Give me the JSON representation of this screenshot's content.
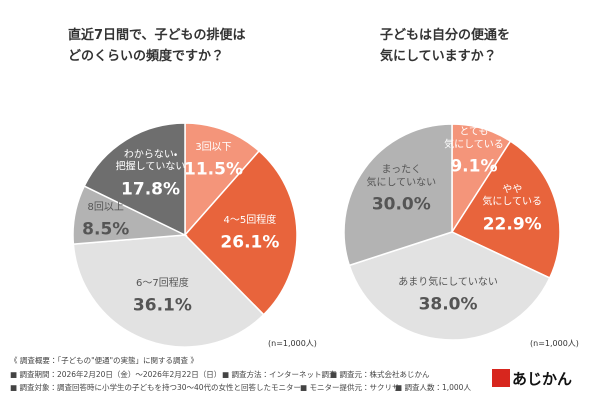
{
  "chart_data": [
    {
      "type": "pie",
      "title": "直近7日間で、子どもの排便は\nどのくらいの頻度ですか？",
      "categories": [
        "3回以下",
        "4〜5回程度",
        "6〜7回程度",
        "8回以上",
        "わからない・\n把握していない"
      ],
      "values": [
        11.5,
        26.1,
        36.1,
        8.5,
        17.8
      ],
      "value_labels": [
        "11.5%",
        "26.1%",
        "36.1%",
        "8.5%",
        "17.8%"
      ],
      "colors": [
        "#f4957a",
        "#e8643c",
        "#e2e2e2",
        "#b3b3b3",
        "#6e6e6e"
      ],
      "note": "(n=1,000人)"
    },
    {
      "type": "pie",
      "title": "子どもは自分の便通を\n気にしていますか？",
      "categories": [
        "とても\n気にしている",
        "やや\n気にしている",
        "あまり気にしていない",
        "まったく\n気にしていない"
      ],
      "values": [
        9.1,
        22.9,
        38.0,
        30.0
      ],
      "value_labels": [
        "9.1%",
        "22.9%",
        "38.0%",
        "30.0%"
      ],
      "colors": [
        "#f4957a",
        "#e8643c",
        "#e2e2e2",
        "#b3b3b3"
      ],
      "note": "(n=1,000人)"
    }
  ],
  "footer": {
    "heading": "《 調査概要：「子どもの\"便通\"の実態」に関する調査 》",
    "rows": [
      [
        "■ 調査期間：2026年2月20日（金）～2026年2月22日（日）",
        "■ 調査方法：インターネット調査",
        "■ 調査元：株式会社あじかん"
      ],
      [
        "■ 調査対象：調査回答時に小学生の子どもを持つ30～40代の女性と回答したモニター",
        "■ モニター提供元：サクリサ",
        "■ 調査人数：1,000人"
      ]
    ],
    "logo": "あじかん"
  }
}
